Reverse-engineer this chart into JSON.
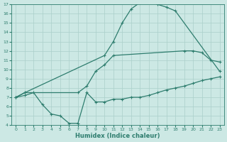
{
  "xlabel": "Humidex (Indice chaleur)",
  "xlim": [
    -0.5,
    23.5
  ],
  "ylim": [
    4,
    17
  ],
  "xticks": [
    0,
    1,
    2,
    3,
    4,
    5,
    6,
    7,
    8,
    9,
    10,
    11,
    12,
    13,
    14,
    15,
    16,
    17,
    18,
    19,
    20,
    21,
    22,
    23
  ],
  "yticks": [
    4,
    5,
    6,
    7,
    8,
    9,
    10,
    11,
    12,
    13,
    14,
    15,
    16,
    17
  ],
  "bg_color": "#cce8e4",
  "line_color": "#2e7d6e",
  "grid_color": "#aacfca",
  "curve1_x": [
    0,
    1,
    10,
    11,
    12,
    13,
    14,
    15,
    16,
    17,
    18,
    23
  ],
  "curve1_y": [
    7,
    7.5,
    11.5,
    13.0,
    15.0,
    16.5,
    17.2,
    17.3,
    17.0,
    16.7,
    16.3,
    9.8
  ],
  "curve2_x": [
    0,
    1,
    7,
    8,
    9,
    10,
    11,
    19,
    20,
    21,
    22,
    23
  ],
  "curve2_y": [
    7,
    7.5,
    7.5,
    8.2,
    9.8,
    10.5,
    11.5,
    12.0,
    12.0,
    11.8,
    11.0,
    10.8
  ],
  "curve3_x": [
    0,
    1,
    2,
    3,
    4,
    5,
    6,
    7,
    8,
    9,
    10,
    11,
    12,
    13,
    14,
    15,
    16,
    17,
    18,
    19,
    20,
    21,
    22,
    23
  ],
  "curve3_y": [
    7,
    7.2,
    7.5,
    6.2,
    5.2,
    5.0,
    4.2,
    4.2,
    7.5,
    6.5,
    6.5,
    6.8,
    6.8,
    7.0,
    7.0,
    7.2,
    7.5,
    7.8,
    8.0,
    8.2,
    8.5,
    8.8,
    9.0,
    9.2
  ]
}
